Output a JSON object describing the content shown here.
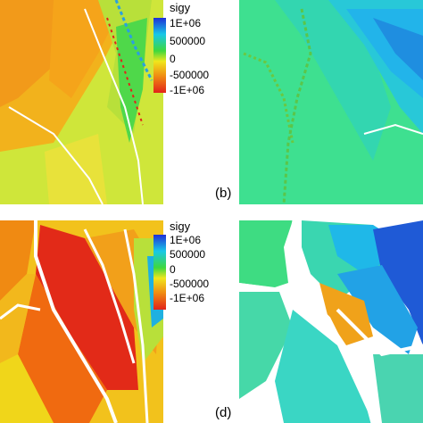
{
  "figure": {
    "legend_top": {
      "title": "sigy",
      "ticks": [
        "1E+06",
        "500000",
        "0",
        "-500000",
        "-1E+06"
      ]
    },
    "legend_bottom": {
      "title": "sigy",
      "ticks": [
        "1E+06",
        "500000",
        "0",
        "-500000",
        "-1E+06"
      ]
    },
    "labels": {
      "b": "(b)",
      "d": "(d)"
    },
    "colormap": {
      "max": "#1f2fd6",
      "high": "#18c8e8",
      "zero": "#3ed83e",
      "mid": "#f0e61c",
      "low": "#f08a12",
      "min": "#e2231a"
    }
  }
}
